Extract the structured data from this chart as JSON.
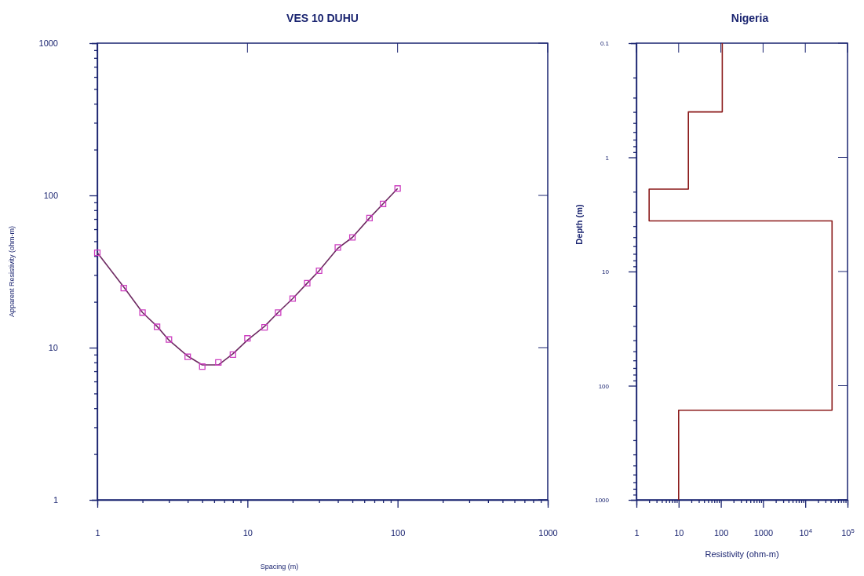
{
  "chart_data": [
    {
      "type": "scatter",
      "title": "VES 10 DUHU",
      "xlabel": "Spacing (m)",
      "ylabel": "Apparent Resistivity (ohm-m)",
      "log": "xy",
      "grid": false,
      "x": [
        1,
        1.5,
        2,
        2.5,
        3,
        4,
        5,
        6.4,
        8,
        10,
        13,
        16,
        20,
        25,
        30,
        40,
        50,
        65,
        80,
        100
      ],
      "xlim": [
        1,
        1000
      ],
      "ylim": [
        1,
        1000
      ],
      "xticks": [
        1,
        {
          "value": 2,
          "label": null
        },
        {
          "value": 3,
          "label": null
        },
        {
          "value": 4,
          "label": null
        },
        {
          "value": 5,
          "label": null
        },
        {
          "value": 6,
          "label": null
        },
        {
          "value": 7,
          "label": null
        },
        {
          "value": 8,
          "label": null
        },
        {
          "value": 9,
          "label": null
        },
        10,
        {
          "value": 20,
          "label": null
        },
        {
          "value": 30,
          "label": null
        },
        {
          "value": 40,
          "label": null
        },
        {
          "value": 50,
          "label": null
        },
        {
          "value": 60,
          "label": null
        },
        {
          "value": 70,
          "label": null
        },
        {
          "value": 80,
          "label": null
        },
        {
          "value": 90,
          "label": null
        },
        100,
        {
          "value": 200,
          "label": null
        },
        {
          "value": 300,
          "label": null
        },
        {
          "value": 400,
          "label": null
        },
        {
          "value": 500,
          "label": null
        },
        {
          "value": 600,
          "label": null
        },
        {
          "value": 700,
          "label": null
        },
        {
          "value": 800,
          "label": null
        },
        {
          "value": 900,
          "label": null
        },
        1000
      ],
      "yticks": [
        1,
        {
          "value": 2,
          "label": null
        },
        {
          "value": 3,
          "label": null
        },
        {
          "value": 4,
          "label": null
        },
        {
          "value": 5,
          "label": null
        },
        {
          "value": 6,
          "label": null
        },
        {
          "value": 7,
          "label": null
        },
        {
          "value": 8,
          "label": null
        },
        {
          "value": 9,
          "label": null
        },
        10,
        {
          "value": 20,
          "label": null
        },
        {
          "value": 30,
          "label": null
        },
        {
          "value": 40,
          "label": null
        },
        {
          "value": 50,
          "label": null
        },
        {
          "value": 60,
          "label": null
        },
        {
          "value": 70,
          "label": null
        },
        {
          "value": 80,
          "label": null
        },
        {
          "value": 90,
          "label": null
        },
        100,
        {
          "value": 200,
          "label": null
        },
        {
          "value": 300,
          "label": null
        },
        {
          "value": 400,
          "label": null
        },
        {
          "value": 500,
          "label": null
        },
        {
          "value": 600,
          "label": null
        },
        {
          "value": 700,
          "label": null
        },
        {
          "value": 800,
          "label": null
        },
        {
          "value": 900,
          "label": null
        },
        1000
      ],
      "series": [
        {
          "type": "line",
          "color": "#6e2a62",
          "marker": "none",
          "line_style": "solid",
          "values": [
            42,
            25,
            17,
            13.8,
            11.2,
            8.8,
            7.7,
            7.7,
            9.1,
            11.2,
            13.8,
            17,
            21,
            26.5,
            32,
            45,
            53,
            71,
            88,
            111
          ]
        },
        {
          "color": "#cc3fc0",
          "marker": "square",
          "values": [
            42,
            24.6,
            17,
            13.7,
            11.3,
            8.7,
            7.5,
            8,
            9,
            11.5,
            13.6,
            17,
            21,
            26.5,
            32,
            45.5,
            53,
            71,
            88,
            111
          ]
        }
      ]
    },
    {
      "type": "line",
      "title": "Nigeria",
      "xlabel": "Resistivity (ohm-m)",
      "ylabel": "Depth (m)",
      "log": "xy",
      "grid": false,
      "xlim": [
        1,
        100000
      ],
      "ylim": [
        1000,
        0.1
      ],
      "xticks": [
        1,
        {
          "value": 2,
          "label": null
        },
        {
          "value": 3,
          "label": null
        },
        {
          "value": 4,
          "label": null
        },
        {
          "value": 5,
          "label": null
        },
        {
          "value": 6,
          "label": null
        },
        {
          "value": 7,
          "label": null
        },
        {
          "value": 8,
          "label": null
        },
        {
          "value": 9,
          "label": null
        },
        10,
        {
          "value": 20,
          "label": null
        },
        {
          "value": 30,
          "label": null
        },
        {
          "value": 40,
          "label": null
        },
        {
          "value": 50,
          "label": null
        },
        {
          "value": 60,
          "label": null
        },
        {
          "value": 70,
          "label": null
        },
        {
          "value": 80,
          "label": null
        },
        {
          "value": 90,
          "label": null
        },
        100,
        {
          "value": 200,
          "label": null
        },
        {
          "value": 300,
          "label": null
        },
        {
          "value": 400,
          "label": null
        },
        {
          "value": 500,
          "label": null
        },
        {
          "value": 600,
          "label": null
        },
        {
          "value": 700,
          "label": null
        },
        {
          "value": 800,
          "label": null
        },
        {
          "value": 900,
          "label": null
        },
        {
          "value": 1000,
          "label": "1000"
        },
        {
          "value": 2000,
          "label": null
        },
        {
          "value": 3000,
          "label": null
        },
        {
          "value": 4000,
          "label": null
        },
        {
          "value": 5000,
          "label": null
        },
        {
          "value": 6000,
          "label": null
        },
        {
          "value": 7000,
          "label": null
        },
        {
          "value": 8000,
          "label": null
        },
        {
          "value": 9000,
          "label": null
        },
        {
          "value": 10000,
          "label": "10$^{4}$"
        },
        {
          "value": 20000,
          "label": null
        },
        {
          "value": 30000,
          "label": null
        },
        {
          "value": 40000,
          "label": null
        },
        {
          "value": 50000,
          "label": null
        },
        {
          "value": 60000,
          "label": null
        },
        {
          "value": 70000,
          "label": null
        },
        {
          "value": 80000,
          "label": null
        },
        {
          "value": 90000,
          "label": null
        },
        {
          "value": 100000,
          "label": "10$^{5}$"
        }
      ],
      "yticks": [
        {
          "value": 0.1,
          "label": "0.1"
        },
        {
          "value": 0.2,
          "label": null
        },
        {
          "value": 0.3,
          "label": null
        },
        {
          "value": 0.4,
          "label": null
        },
        {
          "value": 0.5,
          "label": null
        },
        {
          "value": 0.6,
          "label": null
        },
        {
          "value": 0.7,
          "label": null
        },
        {
          "value": 0.8,
          "label": null
        },
        {
          "value": 0.9,
          "label": null
        },
        1,
        {
          "value": 2,
          "label": null
        },
        {
          "value": 3,
          "label": null
        },
        {
          "value": 4,
          "label": null
        },
        {
          "value": 5,
          "label": null
        },
        {
          "value": 6,
          "label": null
        },
        {
          "value": 7,
          "label": null
        },
        {
          "value": 8,
          "label": null
        },
        {
          "value": 9,
          "label": null
        },
        10,
        {
          "value": 20,
          "label": null
        },
        {
          "value": 30,
          "label": null
        },
        {
          "value": 40,
          "label": null
        },
        {
          "value": 50,
          "label": null
        },
        {
          "value": 60,
          "label": null
        },
        {
          "value": 70,
          "label": null
        },
        {
          "value": 80,
          "label": null
        },
        {
          "value": 90,
          "label": null
        },
        100,
        {
          "value": 200,
          "label": null
        },
        {
          "value": 300,
          "label": null
        },
        {
          "value": 400,
          "label": null
        },
        {
          "value": 500,
          "label": null
        },
        {
          "value": 600,
          "label": null
        },
        {
          "value": 700,
          "label": null
        },
        {
          "value": 800,
          "label": null
        },
        {
          "value": 900,
          "label": null
        },
        {
          "value": 1000,
          "label": "1000"
        }
      ],
      "series": [
        {
          "color": "#8b1a1a",
          "marker": "none",
          "line_style": "solid",
          "x": [
            108,
            108,
            17,
            17,
            2,
            2,
            43000,
            43000,
            10,
            10
          ],
          "values": [
            0.1,
            0.4,
            0.4,
            1.9,
            1.9,
            3.6,
            3.6,
            164,
            164,
            1000
          ]
        }
      ]
    }
  ]
}
